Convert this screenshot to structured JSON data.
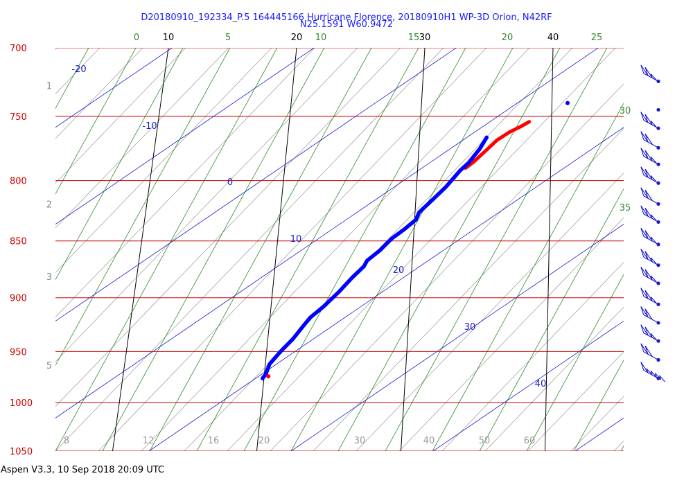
{
  "chart_data": {
    "type": "skew-t",
    "title_line1": "D20180910_192334_P.5 164445166 Hurricane Florence, 20180910H1 WP-3D Orion, N42RF",
    "title_line2": "N25.1591 W60.9472",
    "footer": "Aspen V3.3, 10 Sep 2018  20:09 UTC",
    "pressure_levels": [
      700,
      750,
      800,
      850,
      900,
      950,
      1000,
      1050
    ],
    "pressure_labels": [
      "700",
      "750",
      "800",
      "850",
      "900",
      "950",
      "1000",
      "1050"
    ],
    "isotherm_labels": [
      "10",
      "20",
      "30",
      "40"
    ],
    "isotherm_values": [
      10,
      20,
      30,
      40
    ],
    "theta_e_labels": [
      "0",
      "5",
      "10",
      "15",
      "20",
      "25",
      "30",
      "35"
    ],
    "blue_line_labels": [
      "-20",
      "-10",
      "0",
      "10",
      "20",
      "30",
      "40"
    ],
    "mixing_ratio_labels": [
      "8",
      "12",
      "16",
      "20",
      "30",
      "40",
      "50",
      "60"
    ],
    "height_labels": [
      "1",
      "2",
      "3",
      "5"
    ],
    "height_label_pressures": [
      727,
      819,
      881,
      963
    ],
    "colors": {
      "title": "#1a1aff",
      "isobar": "#cc0000",
      "isotherm": "#000000",
      "moist_adiabat": "#2e8b2e",
      "dry_adiabat": "#1a1acc",
      "mixing_ratio": "#999999",
      "height": "#888888",
      "temperature": "#ff0000",
      "dewpoint": "#0000ff",
      "wind": "#1a1acc"
    },
    "sounding": {
      "temperature": [
        {
          "p": 754,
          "t": 38.3
        },
        {
          "p": 758,
          "t": 37.6
        },
        {
          "p": 762,
          "t": 36.8
        },
        {
          "p": 768,
          "t": 35.9
        },
        {
          "p": 775,
          "t": 35.2
        },
        {
          "p": 785,
          "t": 34.2
        },
        {
          "p": 790,
          "t": 33.6
        }
      ],
      "dewpoint": [
        {
          "p": 766,
          "t": 35.1
        },
        {
          "p": 775,
          "t": 34.6
        },
        {
          "p": 786,
          "t": 33.8
        },
        {
          "p": 792,
          "t": 33.2
        },
        {
          "p": 805,
          "t": 32.2
        },
        {
          "p": 815,
          "t": 31.3
        },
        {
          "p": 826,
          "t": 30.3
        },
        {
          "p": 832,
          "t": 30.1
        },
        {
          "p": 840,
          "t": 29.3
        },
        {
          "p": 848,
          "t": 28.4
        },
        {
          "p": 858,
          "t": 27.6
        },
        {
          "p": 867,
          "t": 26.7
        },
        {
          "p": 872,
          "t": 26.5
        },
        {
          "p": 882,
          "t": 25.7
        },
        {
          "p": 895,
          "t": 24.8
        },
        {
          "p": 908,
          "t": 23.8
        },
        {
          "p": 918,
          "t": 22.9
        },
        {
          "p": 925,
          "t": 22.5
        },
        {
          "p": 938,
          "t": 21.8
        },
        {
          "p": 950,
          "t": 21.0
        },
        {
          "p": 962,
          "t": 20.3
        },
        {
          "p": 972,
          "t": 20.1
        },
        {
          "p": 976,
          "t": 19.9
        }
      ],
      "wind_barbs": [
        {
          "p": 724,
          "flags": [
            1,
            1,
            0.5
          ]
        },
        {
          "p": 745,
          "flags": []
        },
        {
          "p": 759,
          "flags": [
            1,
            1,
            0.5
          ]
        },
        {
          "p": 774,
          "flags": [
            1,
            1
          ]
        },
        {
          "p": 787,
          "flags": [
            1,
            1,
            0.5
          ]
        },
        {
          "p": 802,
          "flags": [
            1,
            1,
            0.5
          ]
        },
        {
          "p": 819,
          "flags": [
            1,
            1
          ]
        },
        {
          "p": 834,
          "flags": [
            1,
            1,
            0.5
          ]
        },
        {
          "p": 853,
          "flags": [
            1,
            1,
            0.5
          ]
        },
        {
          "p": 871,
          "flags": [
            1,
            1,
            0.5
          ]
        },
        {
          "p": 887,
          "flags": [
            1,
            1,
            0.5
          ]
        },
        {
          "p": 906,
          "flags": [
            1,
            1,
            0.5
          ]
        },
        {
          "p": 923,
          "flags": [
            1,
            1
          ]
        },
        {
          "p": 940,
          "flags": [
            1,
            1,
            0.5
          ]
        },
        {
          "p": 958,
          "flags": [
            1,
            1
          ]
        },
        {
          "p": 976,
          "flags": [
            1,
            0.5,
            0.5,
            0.5,
            0.5
          ]
        }
      ]
    }
  }
}
